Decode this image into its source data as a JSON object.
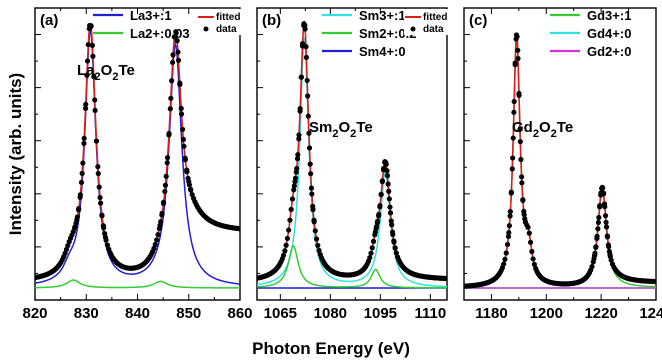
{
  "figure": {
    "ylabel": "Intensity (arb. units)",
    "xlabel": "Photon Energy (eV)"
  },
  "colors": {
    "La3+": "#1f1fd6",
    "La2+": "#33cc33",
    "Sm3+": "#33e0e0",
    "Sm2+": "#33cc33",
    "Sm4+": "#1f1fd6",
    "Gd3+": "#33cc33",
    "Gd4+": "#33e0e0",
    "Gd2+": "#d633d6",
    "fitted": "#d62020",
    "data": "#000000"
  },
  "chart_data": [
    {
      "type": "line",
      "panel_label": "(a)",
      "compound_parts": [
        "La",
        "2",
        "O",
        "2",
        "Te"
      ],
      "xlim": [
        820,
        860
      ],
      "xticks": [
        820,
        830,
        840,
        850,
        860
      ],
      "legend": [
        "La3+:1",
        "La2+:0.03"
      ],
      "fit_legend": [
        "fitted",
        "data"
      ],
      "peaks": [
        {
          "center": 830.8,
          "height": 0.97,
          "width": 1.3,
          "series": "La3+"
        },
        {
          "center": 847.4,
          "height": 0.92,
          "width": 1.5,
          "series": "La3+"
        },
        {
          "center": 826.7,
          "height": 0.04,
          "width": 1.4,
          "series": "La3+"
        },
        {
          "center": 827.5,
          "height": 0.03,
          "width": 1.6,
          "series": "La2+"
        },
        {
          "center": 844.5,
          "height": 0.025,
          "width": 1.6,
          "series": "La2+"
        }
      ],
      "background": {
        "start": 0.02,
        "step_at": 849,
        "end": 0.21
      }
    },
    {
      "type": "line",
      "panel_label": "(b)",
      "compound_parts": [
        "Sm",
        "2",
        "O",
        "2",
        "Te"
      ],
      "xlim": [
        1058,
        1115
      ],
      "xticks": [
        1065,
        1080,
        1095,
        1110
      ],
      "legend": [
        "Sm3+:1",
        "Sm2+:0.2",
        "Sm4+:0"
      ],
      "fit_legend": [
        "fitted",
        "data"
      ],
      "peaks": [
        {
          "center": 1072.2,
          "height": 0.95,
          "width": 1.6,
          "series": "Sm3+"
        },
        {
          "center": 1096.5,
          "height": 0.44,
          "width": 1.8,
          "series": "Sm3+"
        },
        {
          "center": 1068.9,
          "height": 0.16,
          "width": 1.8,
          "series": "Sm2+"
        },
        {
          "center": 1093.6,
          "height": 0.07,
          "width": 1.6,
          "series": "Sm2+"
        }
      ],
      "background": {
        "start": 0.02,
        "step_at": 1100,
        "end": 0.03
      }
    },
    {
      "type": "line",
      "panel_label": "(c)",
      "compound_parts": [
        "Gd",
        "2",
        "O",
        "2",
        "Te"
      ],
      "xlim": [
        1170,
        1240
      ],
      "xticks": [
        1180,
        1200,
        1220,
        1240
      ],
      "legend": [
        "Gd3+:1",
        "Gd4+:0",
        "Gd2+:0"
      ],
      "peaks": [
        {
          "center": 1189.2,
          "height": 0.95,
          "width": 1.5,
          "series": "Gd3+"
        },
        {
          "center": 1220.4,
          "height": 0.38,
          "width": 1.9,
          "series": "Gd3+"
        },
        {
          "center": 1193.5,
          "height": 0.12,
          "width": 1.5,
          "series": "Gd3+"
        }
      ],
      "background": {
        "start": 0.0,
        "step_at": 1224,
        "end": 0.02
      }
    }
  ]
}
